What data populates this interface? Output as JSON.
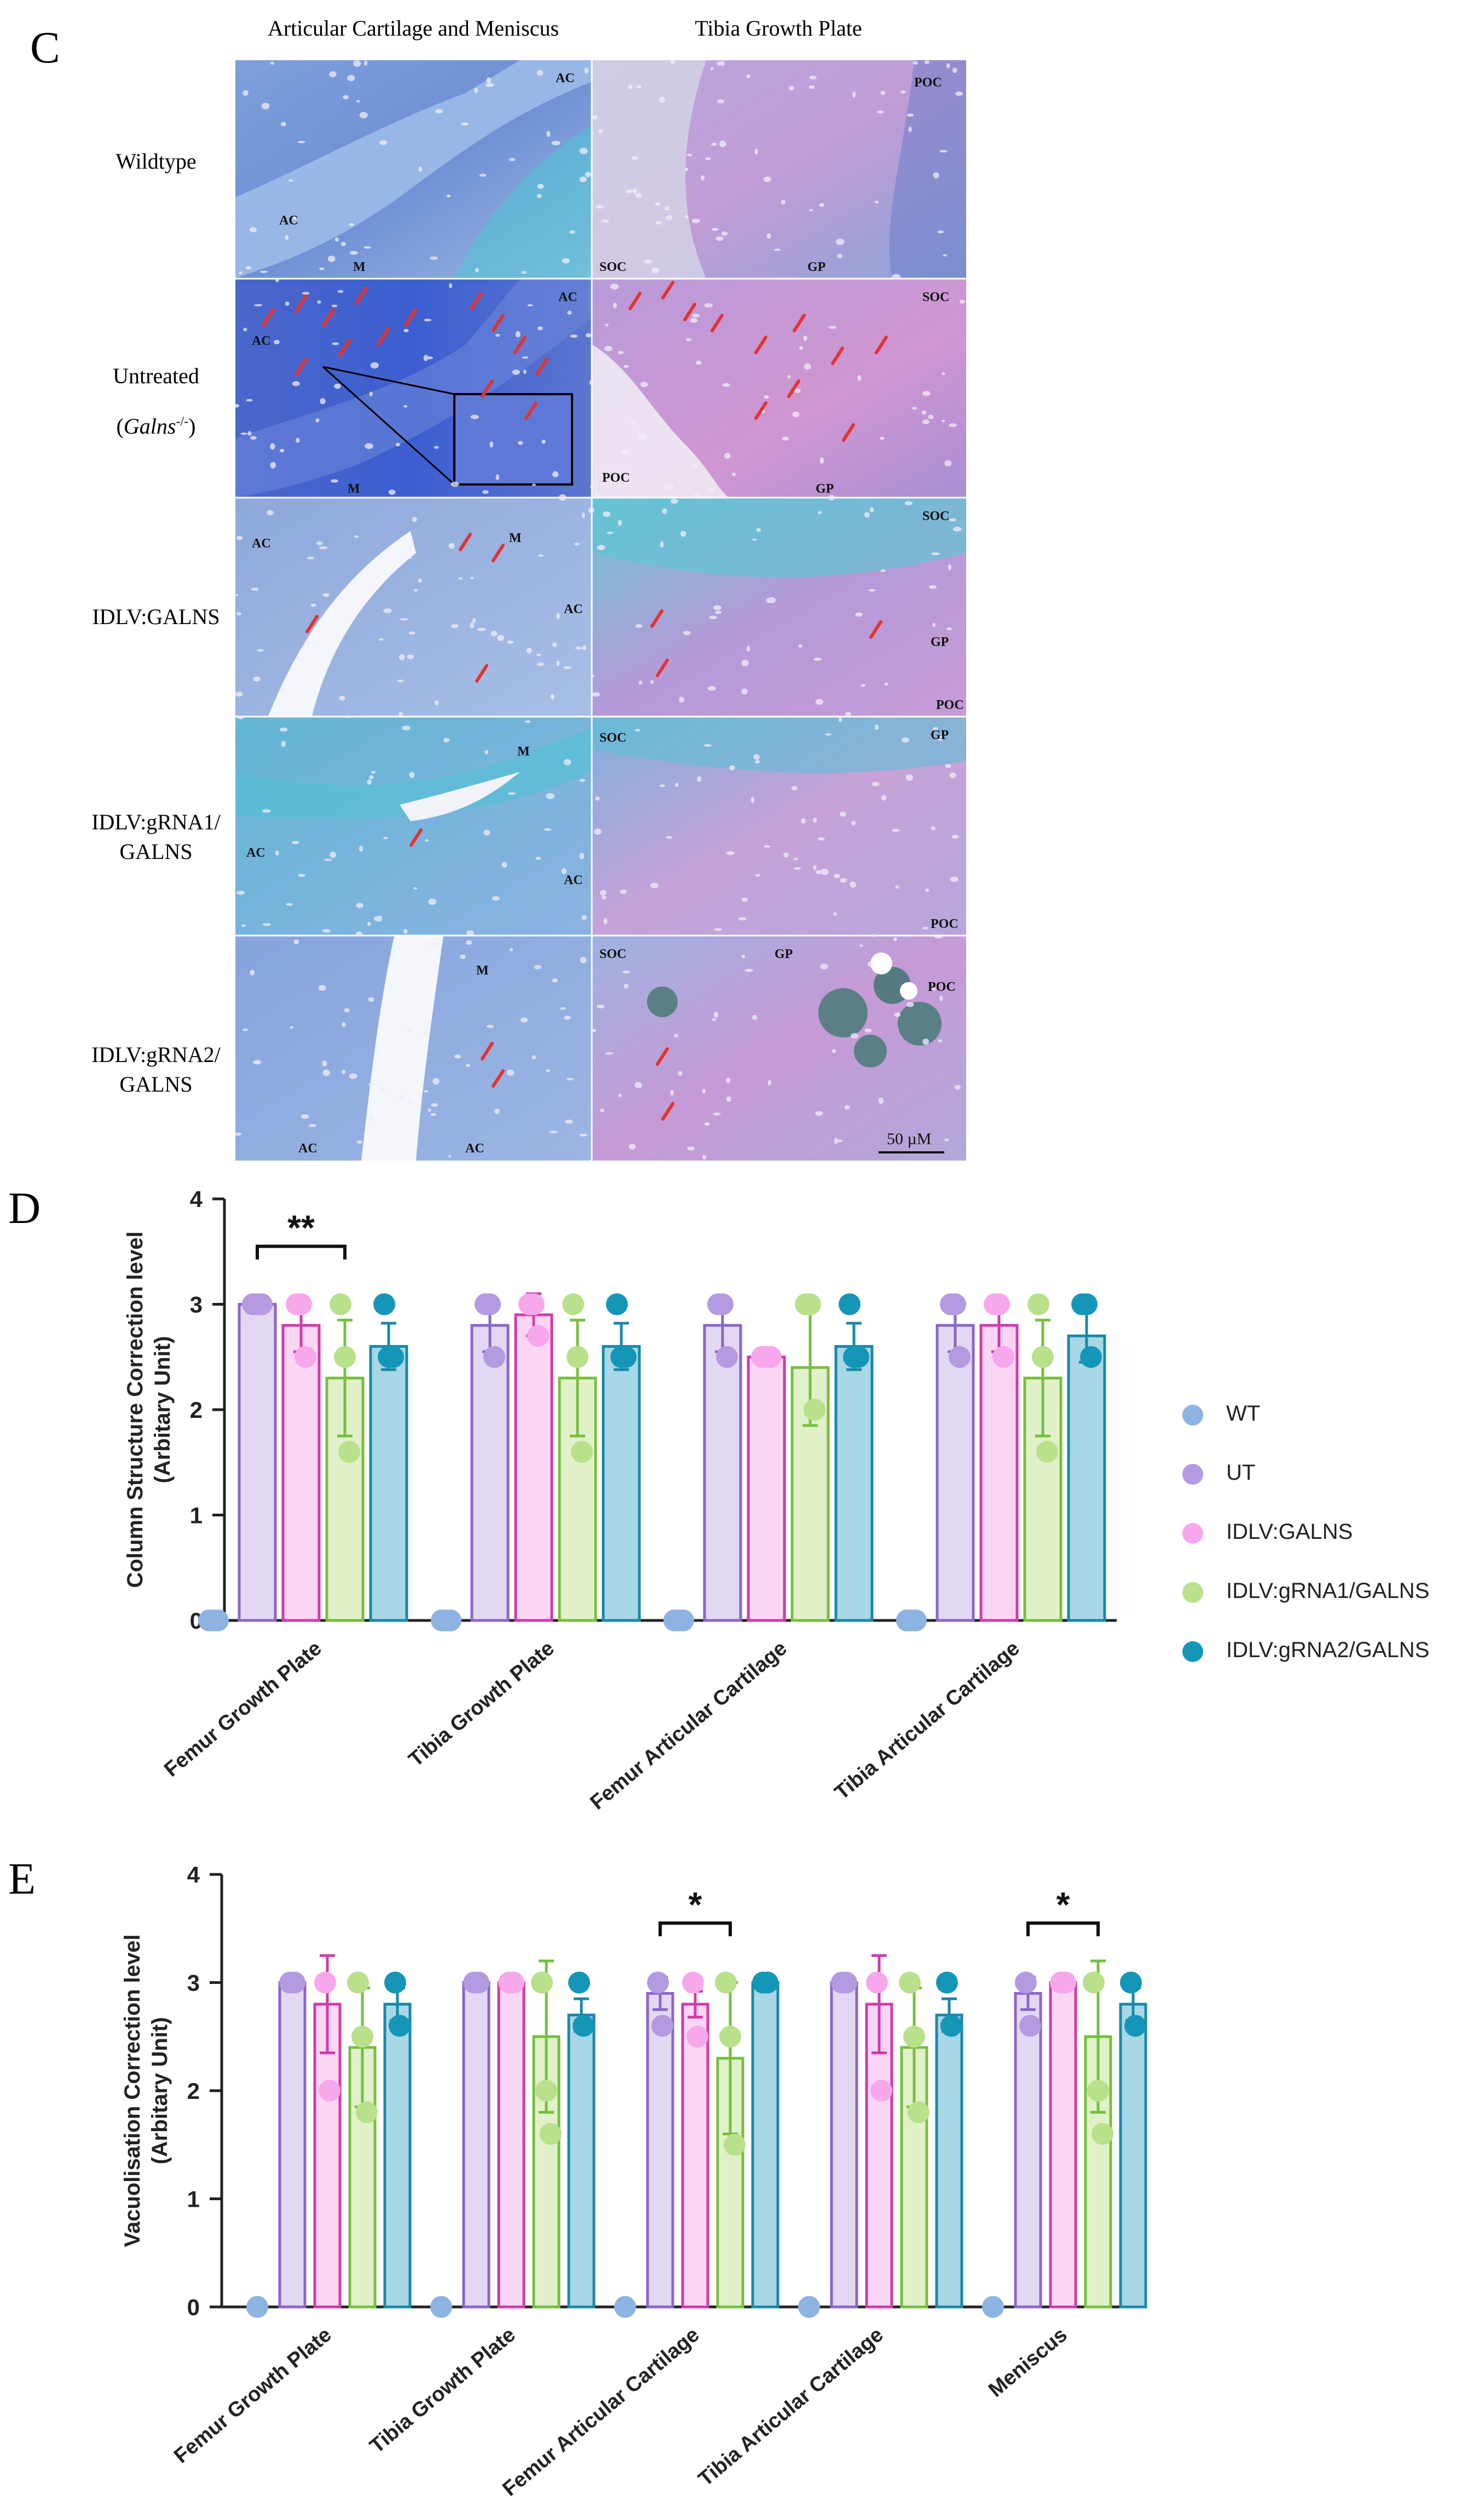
{
  "panels": {
    "c": "C",
    "d": "D",
    "e": "E"
  },
  "histology": {
    "columns": [
      "Articular Cartilage and Meniscus",
      "Tibia Growth Plate"
    ],
    "rows": [
      {
        "lines": [
          "Wildtype"
        ]
      },
      {
        "lines": [
          "Untreated",
          "(Galns-/-)"
        ]
      },
      {
        "lines": [
          "IDLV:GALNS"
        ]
      },
      {
        "lines": [
          "IDLV:gRNA1/",
          "GALNS"
        ]
      },
      {
        "lines": [
          "IDLV:gRNA2/",
          "GALNS"
        ]
      }
    ],
    "untreated_gene": "Galns",
    "untreated_sup": "-/-",
    "scale_bar": "50 µM",
    "tissue_labels": {
      "ac": "AC",
      "m": "M",
      "soc": "SOC",
      "poc": "POC",
      "gp": "GP"
    },
    "colors": {
      "stain_dark": "#3f63c9",
      "stain_mid": "#6b93d6",
      "stain_light": "#9db8e6",
      "stain_pink": "#c79ad6",
      "stain_cyan": "#4ec3d8",
      "arrow": "#e5322d"
    }
  },
  "legend": {
    "entries": [
      "WT",
      "UT",
      "IDLV:GALNS",
      "IDLV:gRNA1/GALNS",
      "IDLV:gRNA2/GALNS"
    ]
  },
  "series_colors": {
    "WT": {
      "dot": "#8db3e2",
      "edge": "#6f9bd2",
      "fill": "#dbe7f6"
    },
    "UT": {
      "dot": "#b49ae0",
      "edge": "#8a66c8",
      "fill": "#e3d8f4"
    },
    "IDLV:GALNS": {
      "dot": "#f7a8ec",
      "edge": "#d03ba8",
      "fill": "#fbd6f4"
    },
    "IDLV:gRNA1/GALNS": {
      "dot": "#b9e08a",
      "edge": "#77bf3f",
      "fill": "#e0f1c9"
    },
    "IDLV:gRNA2/GALNS": {
      "dot": "#1596b8",
      "edge": "#1a88a8",
      "fill": "#a8d7e6"
    }
  },
  "chart_data": [
    {
      "type": "bar",
      "panel": "D",
      "ylabel_lines": [
        "Column Structure Correction level",
        "(Arbitary Unit)"
      ],
      "ylim": [
        0,
        4
      ],
      "yticks": [
        0,
        1,
        2,
        3,
        4
      ],
      "categories": [
        "Femur Growth Plate",
        "Tibia Growth Plate",
        "Femur Articular Cartilage",
        "Tibia Articular Cartilage"
      ],
      "series": [
        {
          "name": "WT",
          "values": [
            0,
            0,
            0,
            0
          ],
          "errors": [
            0,
            0,
            0,
            0
          ],
          "points": [
            [
              0,
              0,
              0
            ],
            [
              0,
              0,
              0
            ],
            [
              0,
              0,
              0
            ],
            [
              0,
              0,
              0
            ]
          ]
        },
        {
          "name": "UT",
          "values": [
            3.0,
            2.8,
            2.8,
            2.8
          ],
          "errors": [
            0,
            0.25,
            0.25,
            0.25
          ],
          "points": [
            [
              3,
              3,
              3
            ],
            [
              3,
              3,
              2.5
            ],
            [
              3,
              3,
              2.5
            ],
            [
              3,
              3,
              2.5
            ]
          ]
        },
        {
          "name": "IDLV:GALNS",
          "values": [
            2.8,
            2.9,
            2.5,
            2.8
          ],
          "errors": [
            0.25,
            0.2,
            0,
            0.25
          ],
          "points": [
            [
              3,
              3,
              2.5
            ],
            [
              3,
              3,
              2.7
            ],
            [
              2.5,
              2.5,
              2.5
            ],
            [
              3,
              3,
              2.5
            ]
          ]
        },
        {
          "name": "IDLV:gRNA1/GALNS",
          "values": [
            2.3,
            2.3,
            2.4,
            2.3
          ],
          "errors": [
            0.55,
            0.55,
            0.55,
            0.55
          ],
          "points": [
            [
              3,
              2.5,
              1.6
            ],
            [
              3,
              2.5,
              1.6
            ],
            [
              3,
              3,
              2
            ],
            [
              3,
              2.5,
              1.6
            ]
          ]
        },
        {
          "name": "IDLV:gRNA2/GALNS",
          "values": [
            2.6,
            2.6,
            2.6,
            2.7
          ],
          "errors": [
            0.22,
            0.22,
            0.22,
            0.25
          ],
          "points": [
            [
              3,
              2.5,
              2.5
            ],
            [
              3,
              2.5,
              2.5
            ],
            [
              3,
              2.5,
              2.5
            ],
            [
              3,
              3,
              2.5
            ]
          ]
        }
      ],
      "significance": [
        {
          "category": 0,
          "from": "UT",
          "to": "IDLV:gRNA1/GALNS",
          "label": "**"
        }
      ]
    },
    {
      "type": "bar",
      "panel": "E",
      "ylabel_lines": [
        "Vacuolisation Correction level",
        "(Arbitary Unit)"
      ],
      "ylim": [
        0,
        4
      ],
      "yticks": [
        0,
        1,
        2,
        3,
        4
      ],
      "categories": [
        "Femur Growth Plate",
        "Tibia Growth Plate",
        "Femur Articular Cartilage",
        "Tibia Articular Cartilage",
        "Meniscus"
      ],
      "series": [
        {
          "name": "WT",
          "values": [
            0,
            0,
            0,
            0,
            0
          ],
          "errors": [
            0,
            0,
            0,
            0,
            0
          ],
          "points": [
            [
              0
            ],
            [
              0
            ],
            [
              0
            ],
            [
              0
            ],
            [
              0
            ]
          ]
        },
        {
          "name": "UT",
          "values": [
            3.0,
            3.0,
            2.9,
            3.0,
            2.9
          ],
          "errors": [
            0,
            0,
            0.15,
            0,
            0.15
          ],
          "points": [
            [
              3,
              3
            ],
            [
              3,
              3
            ],
            [
              3,
              2.6
            ],
            [
              3,
              3
            ],
            [
              3,
              2.6
            ]
          ]
        },
        {
          "name": "IDLV:GALNS",
          "values": [
            2.8,
            3.0,
            2.8,
            2.8,
            3.0
          ],
          "errors": [
            0.45,
            0,
            0.12,
            0.45,
            0
          ],
          "points": [
            [
              3,
              2
            ],
            [
              3,
              3
            ],
            [
              3,
              2.5
            ],
            [
              3,
              2
            ],
            [
              3,
              3
            ]
          ]
        },
        {
          "name": "IDLV:gRNA1/GALNS",
          "values": [
            2.4,
            2.5,
            2.3,
            2.4,
            2.5
          ],
          "errors": [
            0.55,
            0.7,
            0.7,
            0.55,
            0.7
          ],
          "points": [
            [
              3,
              2.5,
              1.8
            ],
            [
              3,
              2,
              1.6
            ],
            [
              3,
              2.5,
              1.5
            ],
            [
              3,
              2.5,
              1.8
            ],
            [
              3,
              2,
              1.6
            ]
          ]
        },
        {
          "name": "IDLV:gRNA2/GALNS",
          "values": [
            2.8,
            2.7,
            3.0,
            2.7,
            2.8
          ],
          "errors": [
            0.15,
            0.15,
            0,
            0.15,
            0.15
          ],
          "points": [
            [
              3,
              2.6
            ],
            [
              3,
              2.6
            ],
            [
              3,
              3
            ],
            [
              3,
              2.6
            ],
            [
              3,
              2.6
            ]
          ]
        }
      ],
      "significance": [
        {
          "category": 2,
          "from": "UT",
          "to": "IDLV:gRNA1/GALNS",
          "label": "*"
        },
        {
          "category": 4,
          "from": "UT",
          "to": "IDLV:gRNA1/GALNS",
          "label": "*"
        }
      ]
    }
  ]
}
